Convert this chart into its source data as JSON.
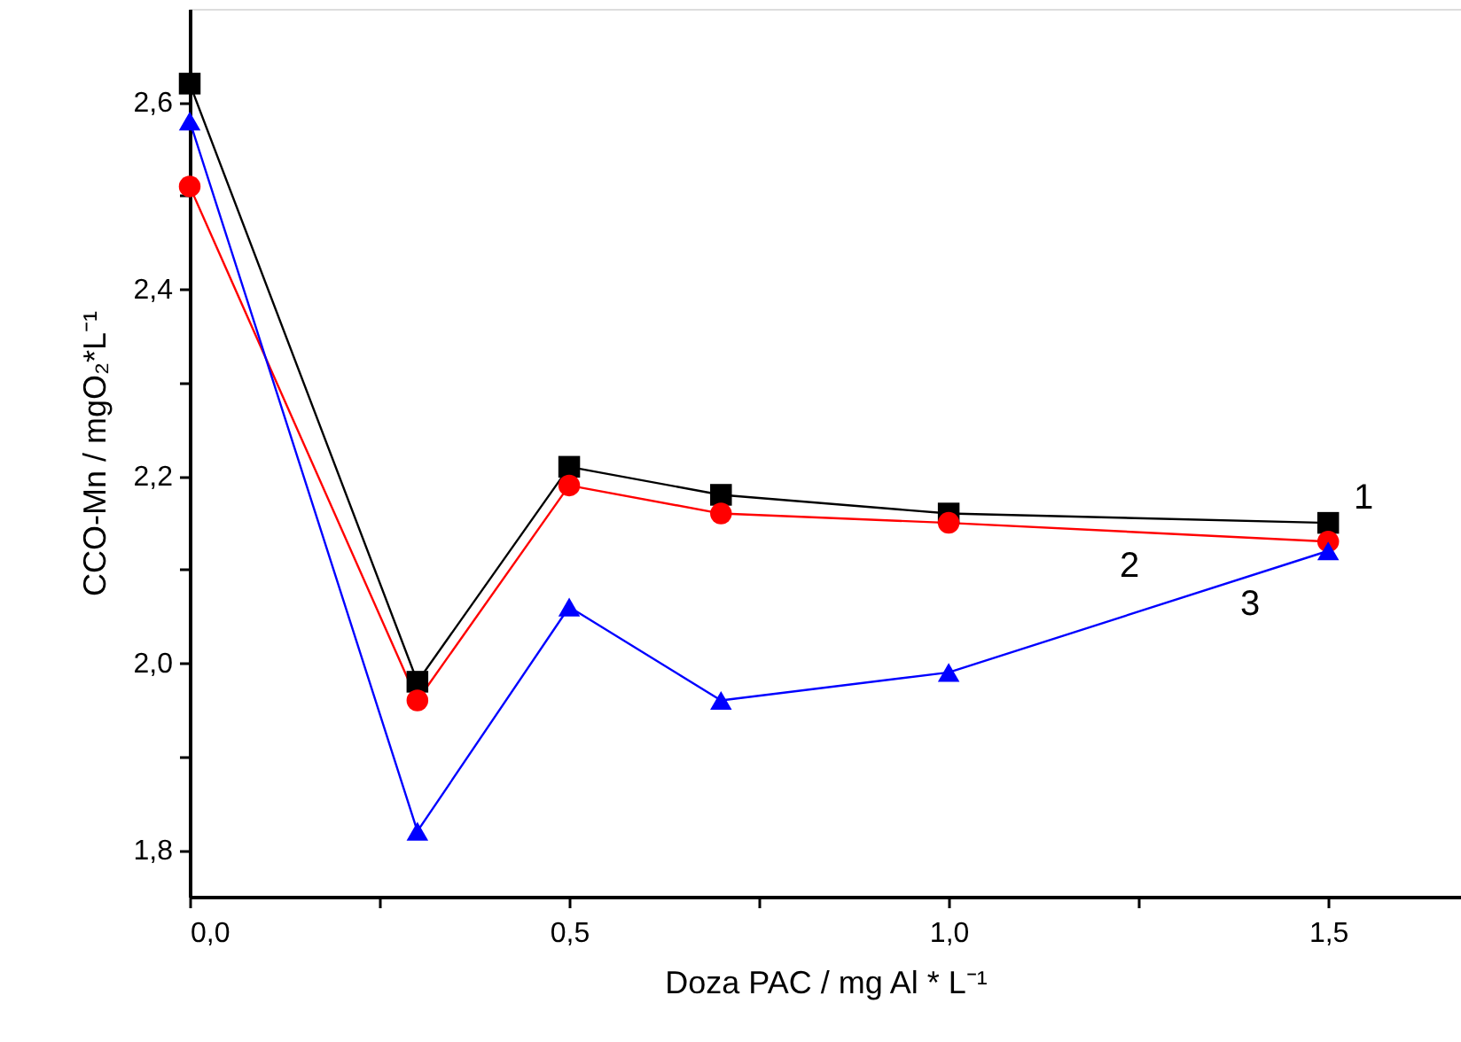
{
  "chart_data": {
    "type": "line",
    "xlabel": "Doza PAC / mg Al * L⁻¹",
    "ylabel": "CCO-Mn / mgO₂*L⁻¹",
    "x": [
      0,
      0.3,
      0.5,
      0.7,
      1.0,
      1.5
    ],
    "series": [
      {
        "name": "1",
        "color": "#000000",
        "marker": "square",
        "values": [
          2.62,
          1.98,
          2.21,
          2.18,
          2.16,
          2.15
        ]
      },
      {
        "name": "2",
        "color": "#ff0000",
        "marker": "circle",
        "values": [
          2.51,
          1.96,
          2.19,
          2.16,
          2.15,
          2.13
        ]
      },
      {
        "name": "3",
        "color": "#0000ff",
        "marker": "triangle",
        "values": [
          2.58,
          1.82,
          2.06,
          1.96,
          1.99,
          2.12
        ]
      }
    ],
    "xlim": [
      0,
      1.675
    ],
    "ylim": [
      1.75,
      2.7
    ],
    "xticks": [
      {
        "value": 0,
        "label": "0,0"
      },
      {
        "value": 0.25,
        "label": null
      },
      {
        "value": 0.5,
        "label": "0,5"
      },
      {
        "value": 0.75,
        "label": null
      },
      {
        "value": 1.0,
        "label": "1,0"
      },
      {
        "value": 1.25,
        "label": null
      },
      {
        "value": 1.5,
        "label": "1,5"
      }
    ],
    "yticks": [
      {
        "value": 1.8,
        "label": "1,8"
      },
      {
        "value": 1.9,
        "label": null
      },
      {
        "value": 2.0,
        "label": "2,0"
      },
      {
        "value": 2.1,
        "label": null
      },
      {
        "value": 2.2,
        "label": "2,2"
      },
      {
        "value": 2.3,
        "label": null
      },
      {
        "value": 2.4,
        "label": "2,4"
      },
      {
        "value": 2.5,
        "label": null
      },
      {
        "value": 2.6,
        "label": "2,6"
      }
    ],
    "grid": false,
    "line_style": "solid"
  }
}
